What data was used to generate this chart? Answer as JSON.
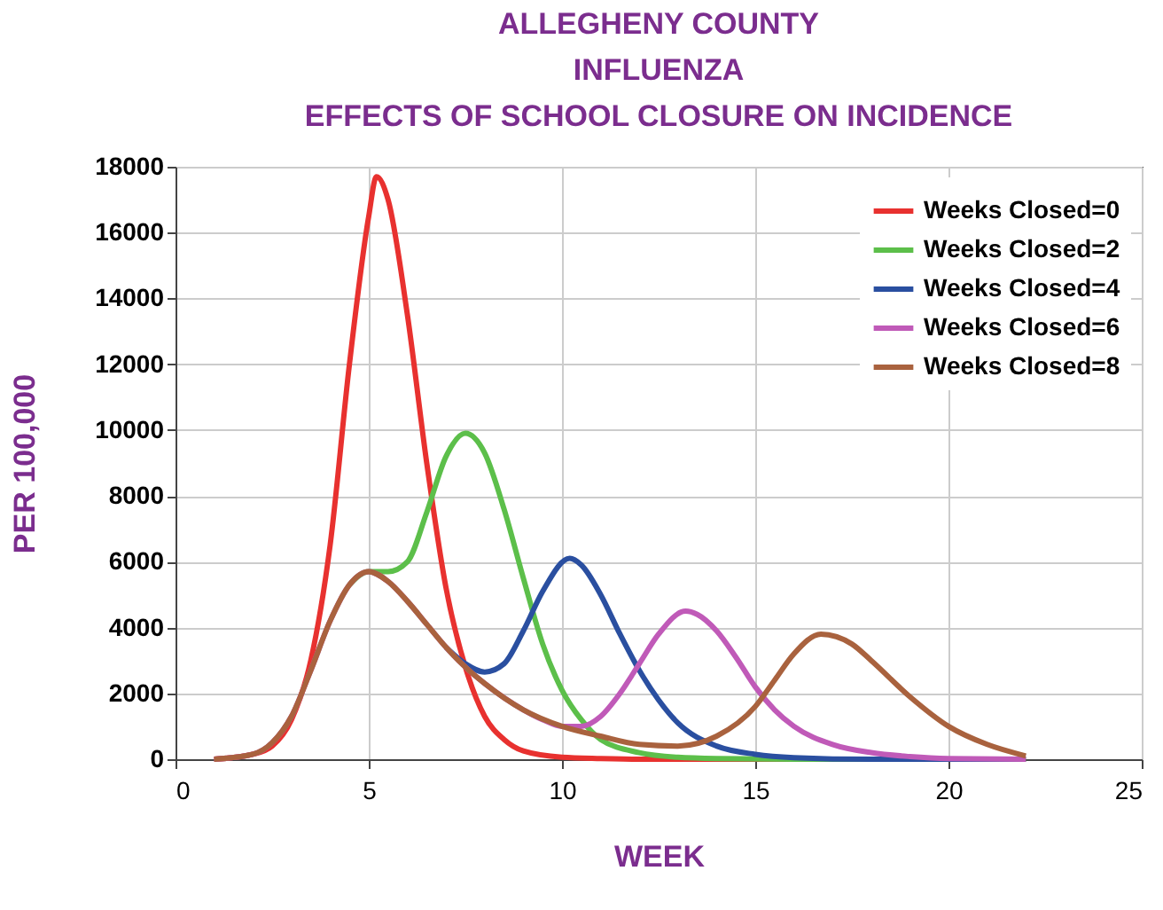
{
  "chart_data": {
    "type": "line",
    "title": [
      "ALLEGHENY COUNTY",
      "INFLUENZA",
      "EFFECTS OF SCHOOL CLOSURE ON INCIDENCE"
    ],
    "xlabel": "WEEK",
    "ylabel": "PER 100,000",
    "xlim": [
      0,
      25
    ],
    "xticks": [
      0,
      5,
      10,
      15,
      20,
      25
    ],
    "ylim": [
      0,
      18000
    ],
    "yticks": [
      0,
      2000,
      4000,
      6000,
      8000,
      10000,
      12000,
      14000,
      16000,
      18000
    ],
    "grid": true,
    "legend": "top right",
    "line_style": "solid",
    "marker": "none",
    "series": [
      {
        "name": "Weeks Closed=0",
        "color": "#e8312f",
        "x": [
          1,
          2,
          2.5,
          3,
          3.5,
          4,
          4.5,
          5,
          5.2,
          5.5,
          6,
          6.5,
          7,
          7.5,
          8,
          8.5,
          9,
          10,
          11,
          12,
          22
        ],
        "values": [
          0,
          150,
          400,
          1200,
          3000,
          6500,
          12000,
          16500,
          17700,
          17000,
          13500,
          9000,
          5200,
          2800,
          1300,
          600,
          250,
          60,
          20,
          0,
          0
        ]
      },
      {
        "name": "Weeks Closed=2",
        "color": "#5cbf4a",
        "x": [
          4.5,
          5,
          5.5,
          6,
          6.5,
          7,
          7.5,
          8,
          8.5,
          9,
          9.5,
          10,
          10.5,
          11,
          12,
          13,
          14,
          16,
          22
        ],
        "values": [
          5300,
          5700,
          5700,
          6000,
          7500,
          9200,
          9900,
          9300,
          7600,
          5500,
          3500,
          2100,
          1200,
          600,
          200,
          60,
          20,
          0,
          0
        ]
      },
      {
        "name": "Weeks Closed=4",
        "color": "#2a4fa0",
        "x": [
          7,
          7.5,
          8,
          8.5,
          9,
          9.5,
          10.2,
          10.5,
          11,
          11.5,
          12,
          12.5,
          13,
          14,
          15,
          16,
          18,
          22
        ],
        "values": [
          3400,
          2900,
          2650,
          2900,
          3900,
          5100,
          6100,
          5900,
          5000,
          3800,
          2700,
          1800,
          1100,
          400,
          150,
          50,
          0,
          0
        ]
      },
      {
        "name": "Weeks Closed=6",
        "color": "#c05ab8",
        "x": [
          1,
          2,
          2.5,
          3,
          3.5,
          4,
          4.5,
          5,
          5.5,
          6,
          6.5,
          7,
          7.5,
          8,
          9,
          9.5,
          10,
          10.5,
          11,
          11.5,
          12,
          12.5,
          13.2,
          13.5,
          14,
          14.5,
          15,
          15.5,
          16,
          17,
          18,
          19,
          20,
          22
        ],
        "values": [
          0,
          150,
          500,
          1300,
          2700,
          4200,
          5300,
          5700,
          5400,
          4800,
          4100,
          3400,
          2800,
          2300,
          1500,
          1200,
          1000,
          1000,
          1300,
          2000,
          2900,
          3800,
          4500,
          4400,
          3900,
          3100,
          2200,
          1500,
          1000,
          450,
          200,
          80,
          20,
          0
        ]
      },
      {
        "name": "Weeks Closed=8",
        "color": "#a9623e",
        "x": [
          1,
          2,
          2.5,
          3,
          3.5,
          4,
          4.5,
          5,
          5.5,
          6,
          6.5,
          7,
          7.5,
          8,
          9,
          10,
          11,
          12,
          13,
          14,
          15,
          15.5,
          16,
          16.7,
          17.5,
          18,
          19,
          20,
          21,
          22
        ],
        "values": [
          0,
          150,
          500,
          1300,
          2700,
          4200,
          5300,
          5700,
          5400,
          4800,
          4100,
          3400,
          2800,
          2300,
          1500,
          1000,
          700,
          450,
          400,
          700,
          1600,
          2400,
          3200,
          3800,
          3500,
          3000,
          1900,
          1000,
          450,
          100
        ]
      }
    ]
  }
}
